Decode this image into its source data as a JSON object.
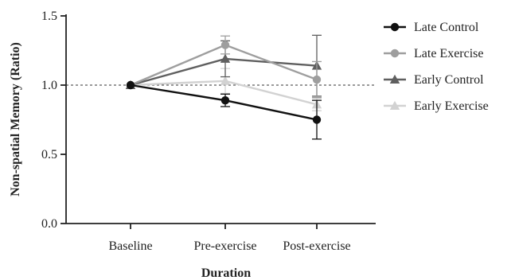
{
  "chart_data": {
    "type": "line",
    "xlabel": "Duration",
    "ylabel": "Non-spatial Memory (Ratio)",
    "categories": [
      "Baseline",
      "Pre-exercise",
      "Post-exercise"
    ],
    "ylim": [
      0.0,
      1.5
    ],
    "yticks": [
      0.0,
      0.5,
      1.0,
      1.5
    ],
    "ytick_labels": [
      "0.0",
      "0.5",
      "1.0",
      "1.5"
    ],
    "reference_line": {
      "y": 1.0,
      "style": "dashed"
    },
    "grid": false,
    "legend_position": "right",
    "series": [
      {
        "name": "Late Control",
        "color": "#111111",
        "marker": "circle",
        "values": [
          1.0,
          0.89,
          0.75
        ],
        "errors": [
          0.0,
          0.045,
          0.14
        ]
      },
      {
        "name": "Late Exercise",
        "color": "#9e9e9e",
        "marker": "circle",
        "values": [
          1.0,
          1.29,
          1.04
        ],
        "errors": [
          0.0,
          0.065,
          0.13
        ]
      },
      {
        "name": "Early Control",
        "color": "#5f5f5f",
        "marker": "triangle",
        "values": [
          1.0,
          1.19,
          1.14
        ],
        "errors": [
          0.0,
          0.13,
          0.22
        ]
      },
      {
        "name": "Early Exercise",
        "color": "#d2d2d2",
        "marker": "triangle",
        "values": [
          1.0,
          1.03,
          0.86
        ],
        "errors": [
          0.0,
          0.09,
          0.045
        ]
      }
    ]
  }
}
